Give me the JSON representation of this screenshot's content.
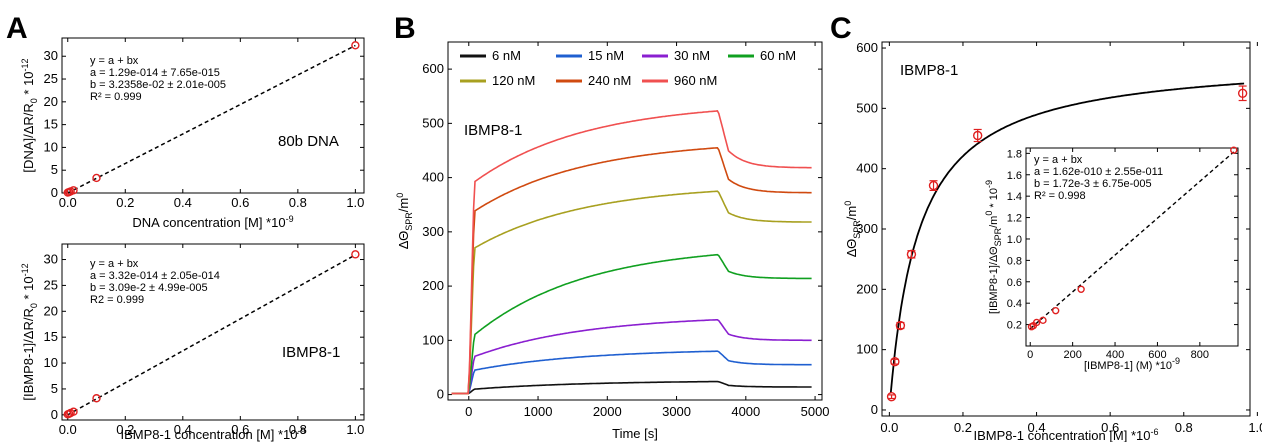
{
  "panels": {
    "A": "A",
    "B": "B",
    "C": "C"
  },
  "chart_data": [
    {
      "id": "A1",
      "type": "scatter",
      "xlabel": "DNA concentration [M] *10",
      "xlabel_sup": "-9",
      "ylabel": "[DNA]/ΔR/R",
      "ylabel_sub": "0",
      "ylabel_tail": " * 10",
      "ylabel_sup": "-12",
      "xlim": [
        -0.02,
        1.03
      ],
      "ylim": [
        0,
        34
      ],
      "xticks": [
        "0.0",
        "0.2",
        "0.4",
        "0.6",
        "0.8",
        "1.0"
      ],
      "yticks": [
        "0",
        "5",
        "10",
        "15",
        "20",
        "25",
        "30"
      ],
      "points": [
        [
          0.0,
          0.1
        ],
        [
          0.005,
          0.2
        ],
        [
          0.01,
          0.35
        ],
        [
          0.02,
          0.6
        ],
        [
          0.1,
          3.3
        ],
        [
          1.0,
          32.4
        ]
      ],
      "fit": {
        "a": 0.0,
        "b": 32.358
      },
      "fit_text": [
        "y = a + bx",
        "a = 1.29e-014  ± 7.65e-015",
        "b = 3.2358e-02 ± 2.01e-005",
        "R² = 0.999"
      ],
      "label": "80b DNA",
      "color": "#e02020"
    },
    {
      "id": "A2",
      "type": "scatter",
      "xlabel": "IBMP8-1 concentration [M] *10",
      "xlabel_sup": "-9",
      "ylabel": "[IBMP8-1]/ΔR/R",
      "ylabel_sub": "0",
      "ylabel_tail": " * 10",
      "ylabel_sup": "-12",
      "xlim": [
        -0.02,
        1.03
      ],
      "ylim": [
        -1,
        33
      ],
      "xticks": [
        "0.0",
        "0.2",
        "0.4",
        "0.6",
        "0.8",
        "1.0"
      ],
      "yticks": [
        "0",
        "5",
        "10",
        "15",
        "20",
        "25",
        "30"
      ],
      "points": [
        [
          0.0,
          0.1
        ],
        [
          0.005,
          0.2
        ],
        [
          0.01,
          0.35
        ],
        [
          0.02,
          0.6
        ],
        [
          0.1,
          3.2
        ],
        [
          1.0,
          31.0
        ]
      ],
      "fit": {
        "a": 0.0,
        "b": 30.9
      },
      "fit_text": [
        "y = a + bx",
        "a = 3.32e-014 ± 2.05e-014",
        "b = 3.09e-2 ± 4.99e-005",
        "R2 = 0.999"
      ],
      "label": "IBMP8-1",
      "color": "#e02020"
    },
    {
      "id": "B",
      "type": "line",
      "xlabel": "Time [s]",
      "ylabel": "ΔΘ",
      "ylabel_sub": "SPR",
      "ylabel_tail": "/m",
      "ylabel_sup": "0",
      "xlim": [
        -300,
        5100
      ],
      "ylim": [
        -10,
        650
      ],
      "xticks": [
        "0",
        "1000",
        "2000",
        "3000",
        "4000",
        "5000"
      ],
      "yticks": [
        "0",
        "100",
        "200",
        "300",
        "400",
        "500",
        "600"
      ],
      "label": "IBMP8-1",
      "series": [
        {
          "name": "6 nM",
          "color": "#111111",
          "plateau": 10,
          "end": 24,
          "after": 14
        },
        {
          "name": "15 nM",
          "color": "#1f5fd0",
          "plateau": 45,
          "end": 80,
          "after": 55
        },
        {
          "name": "30 nM",
          "color": "#8a1fd0",
          "plateau": 70,
          "end": 138,
          "after": 100
        },
        {
          "name": "60 nM",
          "color": "#10a020",
          "plateau": 110,
          "end": 258,
          "after": 214
        },
        {
          "name": "120 nM",
          "color": "#a8a020",
          "plateau": 270,
          "end": 375,
          "after": 318
        },
        {
          "name": "240 nM",
          "color": "#d04a10",
          "plateau": 338,
          "end": 455,
          "after": 372
        },
        {
          "name": "960 nM",
          "color": "#f05050",
          "plateau": 392,
          "end": 523,
          "after": 418
        }
      ]
    },
    {
      "id": "C",
      "type": "scatter",
      "xlabel": "IBMP8-1 concentration [M] *10",
      "xlabel_sup": "-6",
      "ylabel": "ΔΘ",
      "ylabel_sub": "SPR",
      "ylabel_tail": "/m",
      "ylabel_sup": "0",
      "xlim": [
        -0.02,
        0.98
      ],
      "ylim": [
        -10,
        610
      ],
      "xticks": [
        "0.0",
        "0.2",
        "0.4",
        "0.6",
        "0.8",
        "1.0"
      ],
      "yticks": [
        "0",
        "100",
        "200",
        "300",
        "400",
        "500",
        "600"
      ],
      "label": "IBMP8-1",
      "points": [
        [
          0.006,
          22
        ],
        [
          0.015,
          80
        ],
        [
          0.03,
          140
        ],
        [
          0.06,
          258
        ],
        [
          0.12,
          372
        ],
        [
          0.24,
          455
        ],
        [
          0.96,
          525
        ]
      ],
      "yerr": [
        3,
        4,
        5,
        6,
        8,
        10,
        12
      ],
      "color": "#e02020",
      "inset": {
        "xlabel": "[IBMP8-1] (M) *10",
        "xlabel_sup": "-9",
        "ylabel": "[IBMP8-1]/ΔΘ",
        "ylabel_sub": "SPR",
        "ylabel_tail": "/m",
        "ylabel_sup": "0",
        "ylabel_tail2": " * 10",
        "ylabel_sup2": "-9",
        "xlim": [
          -20,
          980
        ],
        "ylim": [
          0,
          1.85
        ],
        "xticks": [
          "0",
          "200",
          "400",
          "600",
          "800"
        ],
        "yticks": [
          "0.2",
          "0.4",
          "0.6",
          "0.8",
          "1.0",
          "1.2",
          "1.4",
          "1.6",
          "1.8"
        ],
        "points": [
          [
            6,
            0.18
          ],
          [
            15,
            0.19
          ],
          [
            30,
            0.22
          ],
          [
            60,
            0.24
          ],
          [
            120,
            0.33
          ],
          [
            240,
            0.53
          ],
          [
            960,
            1.83
          ]
        ],
        "fit": {
          "a": 0.162,
          "b": 0.00172
        },
        "fit_text": [
          "y = a + bx",
          "a = 1.62e-010 ± 2.55e-011",
          "b = 1.72e-3 ± 6.75e-005",
          "R² = 0.998"
        ]
      }
    }
  ]
}
